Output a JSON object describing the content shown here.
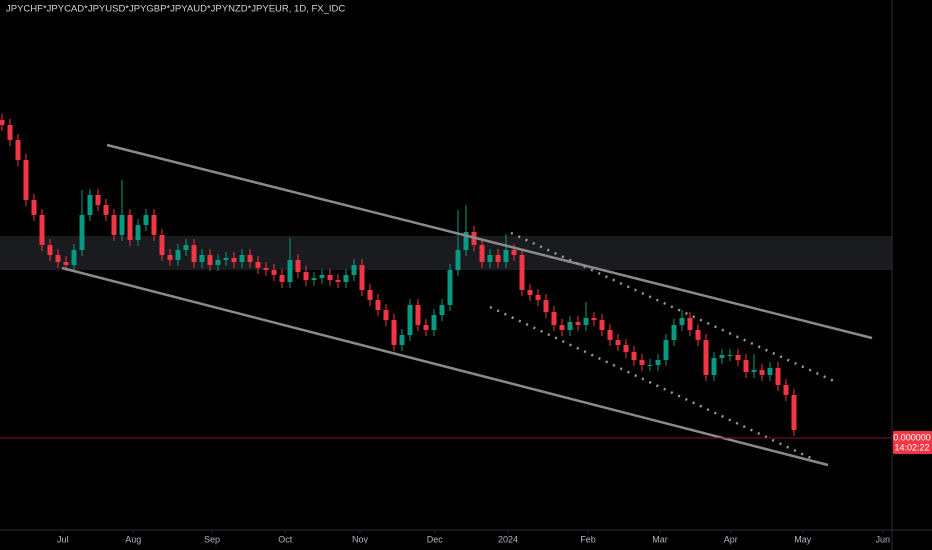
{
  "chart_data": {
    "type": "candlestick",
    "title": "JPYCHF*JPYCAD*JPYUSD*JPYGBP*JPYAUD*JPYNZD*JPYEUR, 1D, FX_IDC",
    "last_price_label": "0.000000",
    "countdown_label": "14:02:22",
    "up_color": "#089981",
    "down_color": "#f23645",
    "xlim": [
      -0.25,
      111.25
    ],
    "ylim": [
      0,
      530
    ],
    "xticks": [
      {
        "value": 7.6,
        "label": "Jul"
      },
      {
        "value": 16.4,
        "label": "Aug"
      },
      {
        "value": 26.25,
        "label": "Sep"
      },
      {
        "value": 35.4,
        "label": "Oct"
      },
      {
        "value": 44.75,
        "label": "Nov"
      },
      {
        "value": 54.1,
        "label": "Dec"
      },
      {
        "value": 63.25,
        "label": "2024"
      },
      {
        "value": 73.25,
        "label": "Feb"
      },
      {
        "value": 82.25,
        "label": "Mar"
      },
      {
        "value": 91.1,
        "label": "Apr"
      },
      {
        "value": 100.1,
        "label": "May"
      },
      {
        "value": 110.1,
        "label": "Jun"
      }
    ],
    "open": [
      410,
      405,
      390,
      370,
      330,
      315,
      285,
      275,
      268,
      265,
      280,
      315,
      335,
      325,
      315,
      295,
      315,
      290,
      305,
      315,
      295,
      275,
      270,
      280,
      285,
      268,
      275,
      265,
      270,
      272,
      268,
      275,
      268,
      262,
      260,
      255,
      248,
      270,
      258,
      250,
      252,
      255,
      250,
      248,
      255,
      265,
      240,
      230,
      220,
      210,
      185,
      195,
      225,
      205,
      200,
      215,
      225,
      260,
      280,
      298,
      285,
      268,
      275,
      268,
      280,
      275,
      240,
      235,
      230,
      218,
      205,
      200,
      208,
      205,
      212,
      210,
      200,
      190,
      185,
      178,
      170,
      165,
      165,
      170,
      190,
      205,
      212,
      200,
      190,
      155,
      172,
      175,
      175,
      170,
      158,
      160,
      155,
      162,
      145,
      135
    ],
    "high": [
      416,
      411,
      396,
      376,
      336,
      321,
      291,
      281,
      274,
      286,
      340,
      341,
      341,
      331,
      321,
      350,
      321,
      311,
      321,
      321,
      301,
      281,
      286,
      291,
      291,
      281,
      281,
      276,
      278,
      278,
      281,
      281,
      274,
      268,
      266,
      261,
      292,
      276,
      264,
      258,
      261,
      261,
      256,
      261,
      271,
      271,
      246,
      236,
      226,
      216,
      201,
      231,
      231,
      211,
      221,
      231,
      266,
      320,
      325,
      304,
      291,
      281,
      281,
      296,
      286,
      281,
      246,
      241,
      236,
      224,
      211,
      214,
      214,
      228,
      218,
      216,
      206,
      196,
      191,
      184,
      176,
      171,
      176,
      196,
      211,
      220,
      218,
      206,
      196,
      178,
      181,
      181,
      181,
      176,
      176,
      166,
      168,
      168,
      151,
      141
    ],
    "low": [
      399,
      384,
      364,
      324,
      309,
      279,
      269,
      262,
      259,
      259,
      274,
      309,
      319,
      309,
      289,
      289,
      284,
      284,
      299,
      289,
      269,
      264,
      264,
      274,
      262,
      262,
      259,
      259,
      264,
      262,
      262,
      262,
      256,
      254,
      249,
      242,
      242,
      252,
      244,
      244,
      246,
      244,
      242,
      242,
      249,
      234,
      224,
      214,
      204,
      179,
      179,
      189,
      199,
      194,
      194,
      209,
      219,
      254,
      274,
      279,
      262,
      262,
      262,
      262,
      269,
      234,
      229,
      224,
      212,
      199,
      194,
      194,
      199,
      199,
      204,
      194,
      184,
      179,
      172,
      164,
      159,
      159,
      159,
      164,
      184,
      199,
      194,
      184,
      149,
      149,
      166,
      169,
      164,
      152,
      152,
      149,
      149,
      139,
      129,
      94
    ],
    "close": [
      405,
      390,
      370,
      330,
      315,
      285,
      275,
      268,
      265,
      280,
      315,
      335,
      325,
      315,
      295,
      315,
      290,
      305,
      315,
      295,
      275,
      270,
      280,
      285,
      268,
      275,
      265,
      270,
      272,
      268,
      275,
      268,
      262,
      260,
      255,
      248,
      270,
      258,
      250,
      252,
      255,
      250,
      248,
      255,
      265,
      240,
      230,
      220,
      210,
      185,
      195,
      225,
      205,
      200,
      215,
      225,
      260,
      280,
      298,
      285,
      268,
      275,
      268,
      280,
      275,
      240,
      235,
      230,
      218,
      205,
      200,
      208,
      205,
      212,
      210,
      200,
      190,
      185,
      178,
      170,
      165,
      165,
      170,
      190,
      205,
      212,
      200,
      190,
      155,
      172,
      175,
      175,
      170,
      158,
      160,
      155,
      162,
      145,
      135,
      100
    ]
  }
}
